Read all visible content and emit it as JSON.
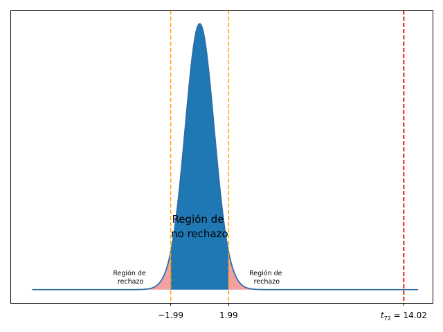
{
  "chart_data": {
    "type": "area",
    "title": "",
    "xlabel": "",
    "ylabel": "",
    "distribution": {
      "name": "t",
      "df": 72
    },
    "xlim": [
      -13.0,
      16.0
    ],
    "x_range_plotted": [
      -11.5,
      15.0
    ],
    "grid": false,
    "critical_values": [
      -1.99,
      1.99
    ],
    "observed_statistic": 14.02,
    "tick_labels": {
      "left_critical": "−1.99",
      "right_critical": "1.99",
      "statistic_prefix": "t",
      "statistic_subscript": "72",
      "statistic_suffix": " = 14.02"
    },
    "regions": {
      "rejection_left": [
        "Región de",
        "rechazo"
      ],
      "rejection_right": [
        "Región de",
        "rechazo"
      ],
      "non_rejection": [
        "Región de",
        "no rechazo"
      ]
    },
    "colors": {
      "curve": "#2e6ea8",
      "non_rejection_fill": "#1f77b4",
      "rejection_fill": "#f4a0a0",
      "critical_line": "#ffa500",
      "statistic_line": "#dd0000"
    }
  }
}
